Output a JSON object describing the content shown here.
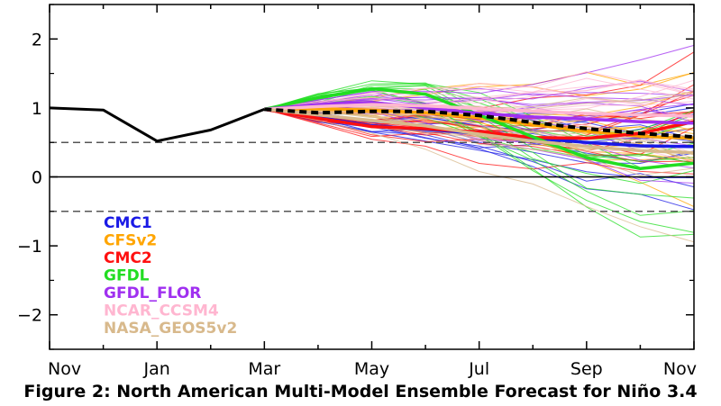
{
  "caption": "Figure 2: North American Multi-Model Ensemble Forecast for Niño 3.4",
  "chart_data": {
    "type": "line",
    "title": "",
    "xlabel": "",
    "ylabel": "",
    "x_tick_labels": [
      "Nov",
      "Jan",
      "Mar",
      "May",
      "Jul",
      "Sep",
      "Nov"
    ],
    "y_ticks": [
      -2,
      -1,
      0,
      1,
      2
    ],
    "ylim": [
      -2.5,
      2.5
    ],
    "month_count": 13,
    "reference_lines": [
      {
        "y": 0,
        "style": "solid"
      },
      {
        "y": 0.5,
        "style": "dashed"
      },
      {
        "y": -0.5,
        "style": "dashed"
      }
    ],
    "observed": {
      "color": "#000000",
      "x": [
        0,
        1,
        2,
        3,
        4
      ],
      "values": [
        1.0,
        0.97,
        0.52,
        0.68,
        0.98
      ]
    },
    "multi_model_mean": {
      "color": "#000000",
      "style": "dashed",
      "x": [
        4,
        5,
        6,
        7,
        8,
        9,
        10,
        11,
        12
      ],
      "values": [
        0.98,
        0.93,
        0.95,
        0.95,
        0.89,
        0.79,
        0.7,
        0.63,
        0.58
      ]
    },
    "series": [
      {
        "name": "CMC1",
        "color": "#1a1ae6",
        "x": [
          4,
          5,
          6,
          7,
          8,
          9,
          10,
          11,
          12
        ],
        "values": [
          0.98,
          0.86,
          0.74,
          0.69,
          0.63,
          0.56,
          0.5,
          0.45,
          0.44
        ]
      },
      {
        "name": "CFSv2",
        "color": "#ffa500",
        "x": [
          4,
          5,
          6,
          7,
          8,
          9,
          10,
          11,
          12
        ],
        "values": [
          0.98,
          0.99,
          0.97,
          0.93,
          0.86,
          0.76,
          0.66,
          0.59,
          0.56
        ]
      },
      {
        "name": "CMC2",
        "color": "#ff1010",
        "x": [
          4,
          5,
          6,
          7,
          8,
          9,
          10,
          11,
          12
        ],
        "values": [
          0.98,
          0.85,
          0.73,
          0.7,
          0.65,
          0.57,
          0.56,
          0.63,
          0.8
        ]
      },
      {
        "name": "GFDL",
        "color": "#22dd22",
        "x": [
          4,
          5,
          6,
          7,
          8,
          9,
          10,
          11,
          12
        ],
        "values": [
          0.98,
          1.15,
          1.28,
          1.2,
          0.9,
          0.58,
          0.28,
          0.12,
          0.2
        ]
      },
      {
        "name": "GFDL_FLOR",
        "color": "#a030f0",
        "x": [
          4,
          5,
          6,
          7,
          8,
          9,
          10,
          11,
          12
        ],
        "values": [
          0.98,
          1.05,
          1.08,
          1.0,
          0.92,
          0.87,
          0.84,
          0.8,
          0.78
        ]
      },
      {
        "name": "NCAR_CCSM4",
        "color": "#ffb6d0",
        "x": [
          4,
          5,
          6,
          7,
          8,
          9,
          10,
          11,
          12
        ],
        "values": [
          0.98,
          1.02,
          1.05,
          1.03,
          0.99,
          0.95,
          0.92,
          0.9,
          0.88
        ]
      },
      {
        "name": "NASA_GEOS5v2",
        "color": "#d8b98c",
        "x": [
          4,
          5,
          6,
          7,
          8,
          9,
          10,
          11,
          12
        ],
        "values": [
          0.98,
          0.9,
          0.82,
          0.74,
          0.62,
          0.52,
          0.44,
          0.38,
          0.35
        ]
      }
    ]
  }
}
